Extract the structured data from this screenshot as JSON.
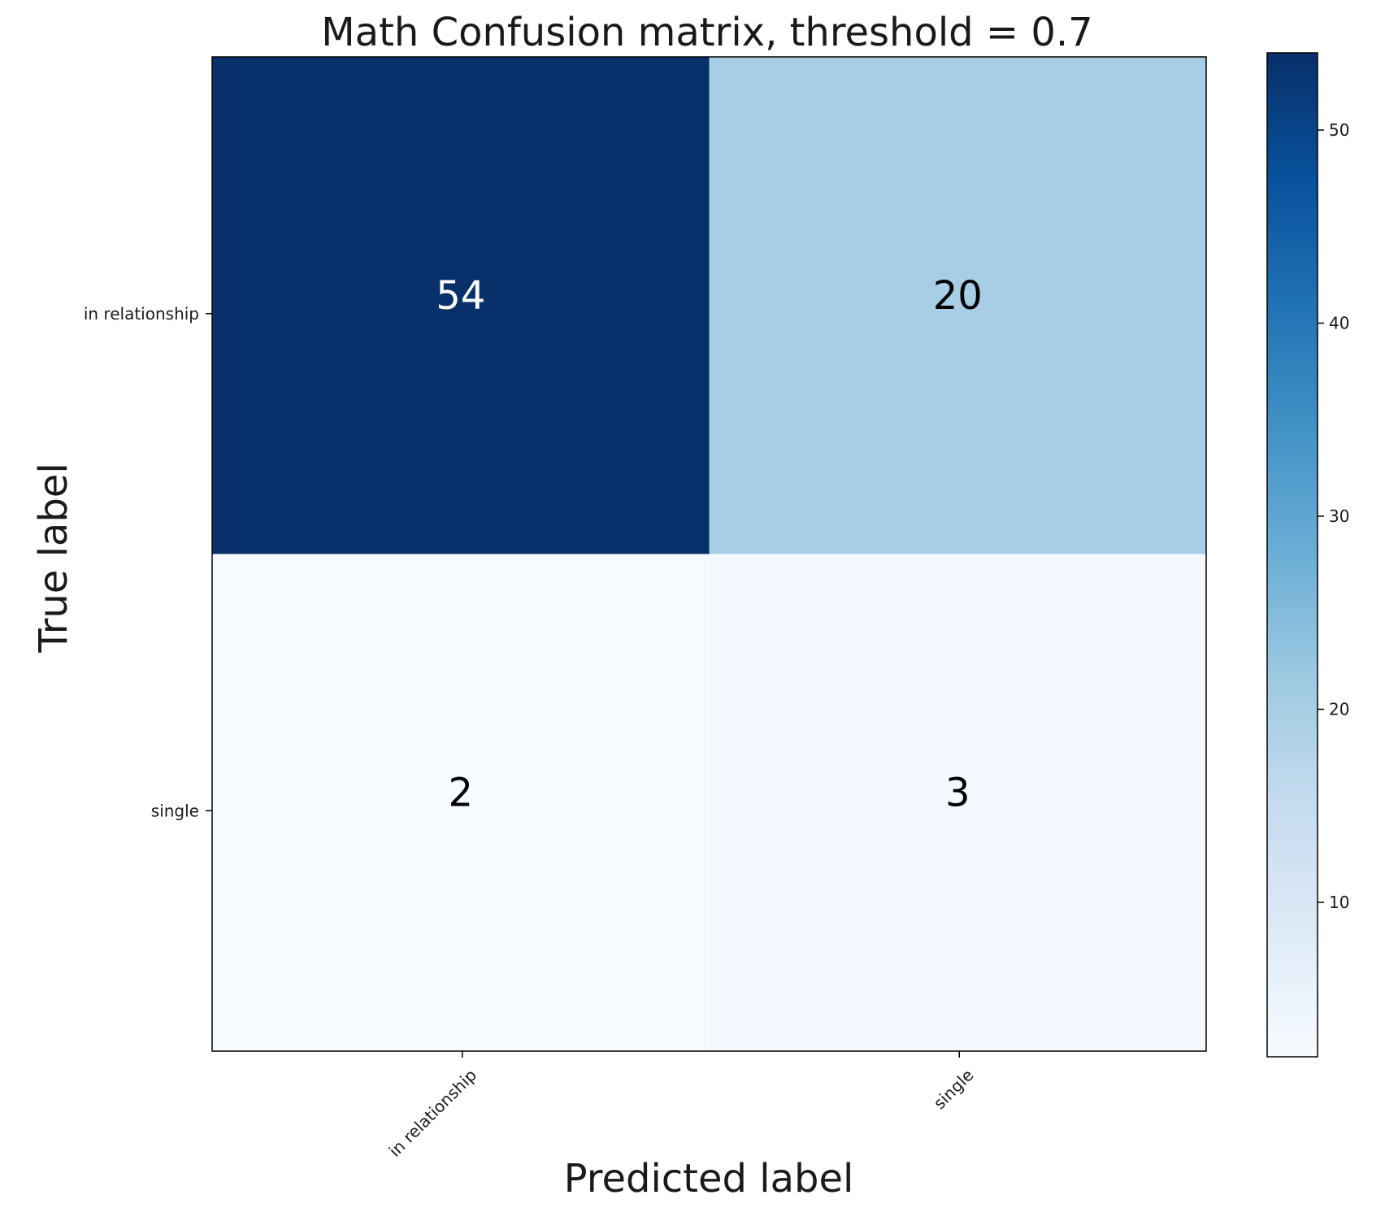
{
  "chart_data": {
    "type": "heatmap",
    "title": "Math Confusion matrix, threshold = 0.7",
    "xlabel": "Predicted label",
    "ylabel": "True label",
    "x_categories": [
      "in relationship",
      "single"
    ],
    "y_categories": [
      "in relationship",
      "single"
    ],
    "matrix": [
      [
        54,
        20
      ],
      [
        2,
        3
      ]
    ],
    "colormap": "Blues",
    "colorbar": {
      "range": [
        2,
        54
      ],
      "ticks": [
        10,
        20,
        30,
        40,
        50
      ]
    },
    "colors": {
      "cmap_stops": [
        "#f7fbff",
        "#deebf7",
        "#c6dbef",
        "#9ecae1",
        "#6baed6",
        "#4292c6",
        "#2171b5",
        "#08519c",
        "#08306b"
      ],
      "text_dark": "#000000",
      "text_light": "#ffffff"
    }
  }
}
